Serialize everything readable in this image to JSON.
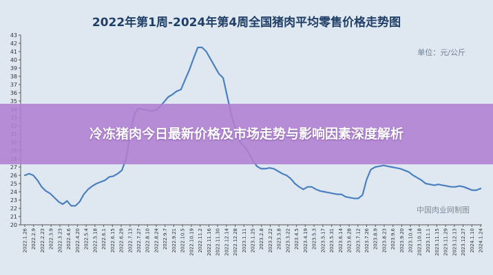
{
  "chart_data": {
    "type": "line",
    "title": "2022年第1周-2024年第4周全国猪肉平均零售价格走势图",
    "unit_label": "单位：元/公斤",
    "source_label": "中国肉业网制图",
    "ylim": [
      20,
      43
    ],
    "yticks": [
      20,
      21,
      22,
      23,
      24,
      25,
      26,
      27,
      28,
      29,
      30,
      31,
      32,
      33,
      34,
      35,
      36,
      37,
      38,
      39,
      40,
      41,
      42,
      43
    ],
    "grid": false,
    "legend": "none",
    "line_color": "#4a7fbf",
    "x_tick_labels": [
      "2022.1.26",
      "2022.2.9",
      "2022.2.23",
      "2022.3.9",
      "2022.3.23",
      "2022.4.6",
      "2022.4.20",
      "2022.5.4",
      "2022.5.18",
      "2022.6.1",
      "2022.6.15",
      "2022.6.29",
      "2022.7.13",
      "2022.7.27",
      "2022.8.10",
      "2022.8.24",
      "2022.9.7",
      "2022.9.21",
      "2022.10.5",
      "2022.10.19",
      "2022.11.2",
      "2022.11.16",
      "2022.11.30",
      "2022.12.14",
      "2022.12.28",
      "2023.1.11",
      "2023.1.25",
      "2023.2.8",
      "2023.2.22",
      "2023.3.8",
      "2023.3.22",
      "2023.4.5",
      "2023.4.19",
      "2023.5.3",
      "2023.5.17",
      "2023.5.31",
      "2023.6.14",
      "2023.6.28",
      "2023.7.12",
      "2023.7.26",
      "2023.8.9",
      "2023.8.23",
      "2023.9.6",
      "2023.9.20",
      "2023.10.4",
      "2023.10.18",
      "2023.11.1",
      "2023.11.15",
      "2023.11.29",
      "2023.12.13",
      "2023.12.27",
      "2024.1.10",
      "2024.1.24"
    ],
    "values": [
      26.0,
      26.2,
      26.0,
      25.4,
      24.6,
      24.1,
      23.8,
      23.3,
      22.8,
      22.5,
      22.9,
      22.3,
      22.3,
      22.8,
      23.7,
      24.3,
      24.7,
      25.0,
      25.2,
      25.4,
      25.8,
      25.9,
      26.2,
      26.6,
      28.0,
      31.0,
      33.5,
      34.1,
      34.0,
      33.9,
      33.8,
      33.9,
      34.3,
      34.9,
      35.5,
      35.8,
      36.2,
      36.4,
      37.6,
      38.8,
      40.2,
      41.5,
      41.5,
      41.0,
      40.1,
      39.2,
      38.3,
      37.8,
      35.5,
      33.2,
      31.5,
      30.0,
      29.5,
      28.8,
      27.8,
      27.1,
      26.8,
      26.8,
      26.9,
      26.8,
      26.5,
      26.2,
      26.0,
      25.6,
      25.0,
      24.6,
      24.3,
      24.6,
      24.6,
      24.3,
      24.1,
      24.0,
      23.9,
      23.8,
      23.7,
      23.7,
      23.4,
      23.3,
      23.2,
      23.2,
      23.6,
      25.5,
      26.7,
      27.0,
      27.1,
      27.2,
      27.1,
      27.0,
      26.9,
      26.8,
      26.6,
      26.4,
      26.0,
      25.7,
      25.4,
      25.0,
      24.9,
      24.8,
      24.9,
      24.8,
      24.7,
      24.6,
      24.6,
      24.7,
      24.6,
      24.4,
      24.2,
      24.2,
      24.4
    ]
  },
  "banner": {
    "text": "冷冻猪肉今日最新价格及市场走势与影响因素深度解析"
  }
}
